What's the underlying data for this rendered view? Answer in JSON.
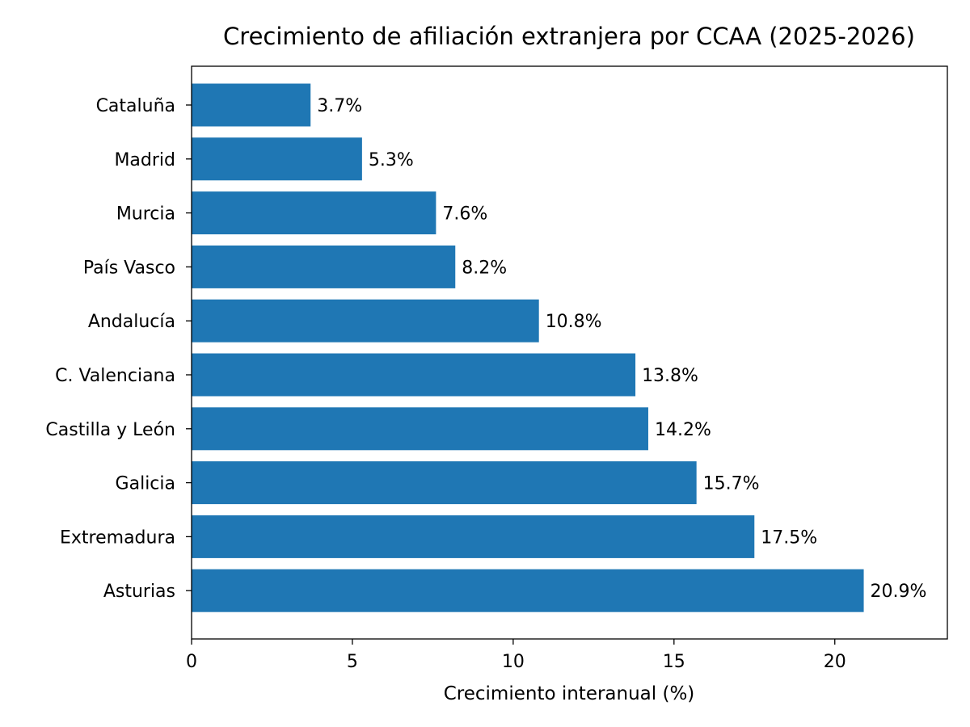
{
  "chart_data": {
    "type": "bar",
    "orientation": "horizontal",
    "title": "Crecimiento de afiliación extranjera por CCAA (2025-2026)",
    "xlabel": "Crecimiento interanual (%)",
    "ylabel": "",
    "categories": [
      "Cataluña",
      "Madrid",
      "Murcia",
      "País Vasco",
      "Andalucía",
      "C. Valenciana",
      "Castilla y León",
      "Galicia",
      "Extremadura",
      "Asturias"
    ],
    "values": [
      3.7,
      5.3,
      7.6,
      8.2,
      10.8,
      13.8,
      14.2,
      15.7,
      17.5,
      20.9
    ],
    "data_labels": [
      "3.7%",
      "5.3%",
      "7.6%",
      "8.2%",
      "10.8%",
      "13.8%",
      "14.2%",
      "15.7%",
      "17.5%",
      "20.9%"
    ],
    "xlim": [
      0,
      23.5
    ],
    "xticks": [
      0,
      5,
      10,
      15,
      20
    ],
    "xtick_labels": [
      "0",
      "5",
      "10",
      "15",
      "20"
    ],
    "grid": false,
    "bar_color": "#1f77b4"
  }
}
